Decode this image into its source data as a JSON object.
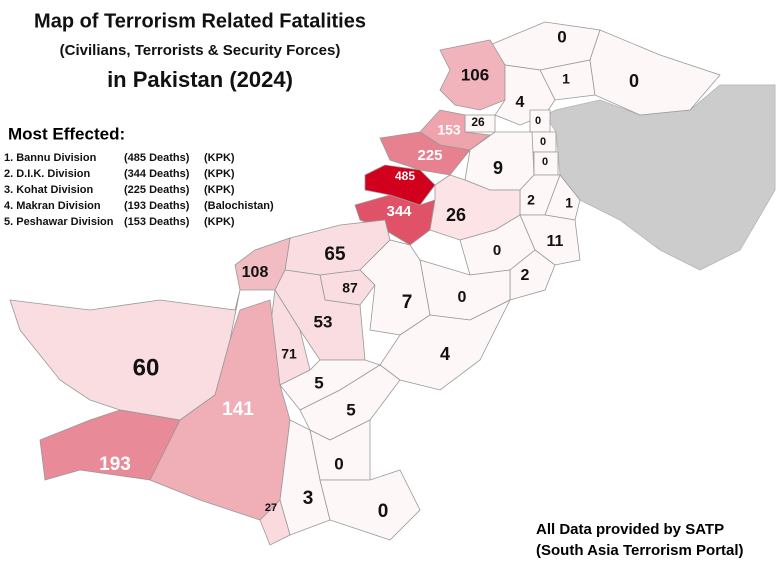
{
  "header": {
    "title": "Map of Terrorism Related Fatalities",
    "subtitle": "(Civilians, Terrorists & Security Forces)",
    "title2": "in Pakistan (2024)"
  },
  "most_effected": {
    "heading": "Most Effected:",
    "items": [
      {
        "name": "1. Bannu Division",
        "deaths": "(485 Deaths)",
        "province": "(KPK)"
      },
      {
        "name": "2. D.I.K. Division",
        "deaths": "(344 Deaths)",
        "province": "(KPK)"
      },
      {
        "name": "3. Kohat Division",
        "deaths": "(225 Deaths)",
        "province": "(KPK)"
      },
      {
        "name": "4. Makran Division",
        "deaths": "(193 Deaths)",
        "province": "(Balochistan)"
      },
      {
        "name": "5. Peshawar Division",
        "deaths": "(153 Deaths)",
        "province": "(KPK)"
      }
    ]
  },
  "regions": [
    {
      "value": 0,
      "color": "#fdf7f8"
    },
    {
      "value": 106,
      "color": "#f1b4bc"
    },
    {
      "value": 1,
      "color": "#fdf7f8"
    },
    {
      "value": 0,
      "color": "#fdf7f8"
    },
    {
      "value": 4,
      "color": "#fdf7f8"
    },
    {
      "value": 26,
      "color": "#fdf7f8"
    },
    {
      "value": 0,
      "color": "#fdf7f8"
    },
    {
      "value": 153,
      "color": "#eea3ad"
    },
    {
      "value": 0,
      "color": "#fdf7f8"
    },
    {
      "value": 0,
      "color": "#fdf7f8"
    },
    {
      "value": 225,
      "color": "#e8818f"
    },
    {
      "value": 9,
      "color": "#fdf7f8"
    },
    {
      "value": 485,
      "color": "#d1001c"
    },
    {
      "value": 2,
      "color": "#fdf7f8"
    },
    {
      "value": 1,
      "color": "#fdf7f8"
    },
    {
      "value": 344,
      "color": "#e05268"
    },
    {
      "value": 26,
      "color": "#fbe3e6"
    },
    {
      "value": 11,
      "color": "#fdf7f8"
    },
    {
      "value": 0,
      "color": "#fdf7f8"
    },
    {
      "value": 65,
      "color": "#f9dde0"
    },
    {
      "value": 108,
      "color": "#f2bcc3"
    },
    {
      "value": 2,
      "color": "#fdf7f8"
    },
    {
      "value": 87,
      "color": "#f9dde0"
    },
    {
      "value": 0,
      "color": "#fdf7f8"
    },
    {
      "value": 7,
      "color": "#fdf7f8"
    },
    {
      "value": 53,
      "color": "#f9dde0"
    },
    {
      "value": 4,
      "color": "#fdf7f8"
    },
    {
      "value": 71,
      "color": "#f9dde0"
    },
    {
      "value": 60,
      "color": "#f9dde0"
    },
    {
      "value": 5,
      "color": "#fdf7f8"
    },
    {
      "value": 141,
      "color": "#f0aeb6"
    },
    {
      "value": 5,
      "color": "#fdf7f8"
    },
    {
      "value": 193,
      "color": "#e88a98"
    },
    {
      "value": 0,
      "color": "#fdf7f8"
    },
    {
      "value": 3,
      "color": "#fdf7f8"
    },
    {
      "value": 0,
      "color": "#fdf7f8"
    },
    {
      "value": 27,
      "color": "#fadadd"
    }
  ],
  "footer": {
    "line1": "All Data provided by SATP",
    "line2": "(South Asia Terrorism Portal)"
  }
}
